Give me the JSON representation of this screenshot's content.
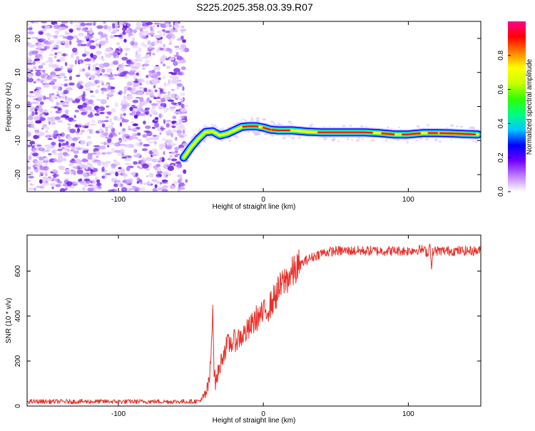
{
  "figure": {
    "title": "S225.2025.358.03.39.R07"
  },
  "chart_data": [
    {
      "type": "heatmap",
      "xlabel": "Height of straight line (km)",
      "ylabel": "Frequency (Hz)",
      "xlim": [
        -163,
        150
      ],
      "ylim": [
        -25,
        25
      ],
      "xticks": [
        -100,
        0,
        100
      ],
      "yticks": [
        -20,
        -10,
        0,
        10,
        20
      ],
      "colorbar": {
        "label": "Normalized spectral amplitude",
        "range": [
          0,
          1
        ],
        "ticks": [
          "0.0",
          "0.2",
          "0.4",
          "0.6",
          "0.8"
        ],
        "tick_values": [
          0,
          0.2,
          0.4,
          0.6,
          0.8
        ],
        "colors": [
          "#ffffff",
          "#c080ff",
          "#7000ff",
          "#0000ff",
          "#00c8ff",
          "#00ff80",
          "#30ff00",
          "#c8ff00",
          "#ffff00",
          "#ff8000",
          "#ff0000",
          "#ff0090"
        ]
      },
      "noise_region": {
        "x_range": [
          -163,
          -55
        ],
        "y_range": [
          -25,
          25
        ]
      },
      "signal_ridge": {
        "x": [
          -55,
          -50,
          -45,
          -40,
          -35,
          -30,
          -25,
          -20,
          -15,
          -10,
          -5,
          0,
          5,
          10,
          20,
          30,
          40,
          50,
          60,
          70,
          80,
          90,
          100,
          110,
          120,
          130,
          140,
          148
        ],
        "frequency": [
          -15,
          -12,
          -9.5,
          -7.5,
          -7.3,
          -8.5,
          -8,
          -7,
          -6,
          -5.8,
          -5.8,
          -6.2,
          -6.8,
          -7,
          -7,
          -7.4,
          -7.6,
          -7.6,
          -7.6,
          -7.6,
          -7.8,
          -8.2,
          -8.2,
          -7.8,
          -7.8,
          -7.9,
          -8.1,
          -8.2
        ]
      }
    },
    {
      "type": "line",
      "xlabel": "Height of straight line (km)",
      "ylabel": "SNR (10 * v/v)",
      "xlim": [
        -163,
        150
      ],
      "ylim": [
        0,
        760
      ],
      "xticks": [
        -100,
        0,
        100
      ],
      "yticks": [
        0,
        200,
        400,
        600
      ],
      "series": [
        {
          "color": "#e8302a",
          "x": [
            -163,
            -150,
            -140,
            -130,
            -120,
            -110,
            -100,
            -90,
            -80,
            -70,
            -60,
            -50,
            -45,
            -42,
            -40,
            -38,
            -37,
            -36,
            -35,
            -34,
            -33,
            -32,
            -30,
            -28,
            -25,
            -20,
            -15,
            -10,
            -5,
            0,
            5,
            10,
            15,
            20,
            25,
            30,
            35,
            40,
            50,
            60,
            70,
            80,
            90,
            100,
            105,
            110,
            114,
            115,
            116,
            117,
            120,
            130,
            140,
            150
          ],
          "y": [
            20,
            20,
            20,
            20,
            20,
            20,
            20,
            20,
            20,
            20,
            20,
            20,
            22,
            30,
            50,
            90,
            130,
            240,
            480,
            160,
            100,
            130,
            175,
            230,
            270,
            290,
            310,
            340,
            390,
            410,
            450,
            510,
            560,
            590,
            625,
            650,
            665,
            680,
            690,
            690,
            690,
            690,
            690,
            690,
            695,
            695,
            680,
            740,
            600,
            690,
            690,
            690,
            690,
            690
          ]
        }
      ]
    }
  ]
}
